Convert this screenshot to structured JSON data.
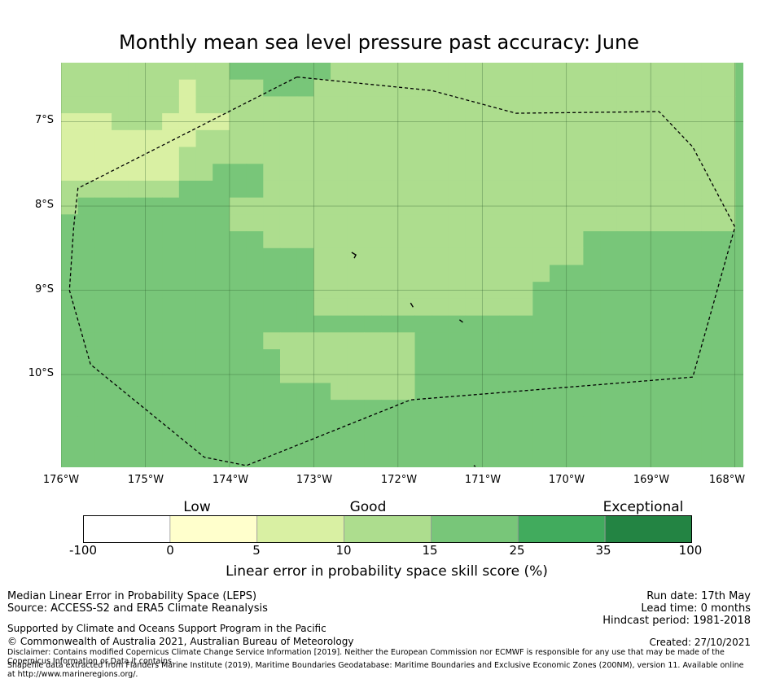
{
  "title": "Monthly mean sea level pressure past accuracy: June",
  "y_axis": {
    "ticks": [
      "7°S",
      "8°S",
      "9°S",
      "10°S"
    ],
    "values": [
      -7,
      -8,
      -9,
      -10
    ]
  },
  "x_axis": {
    "ticks": [
      "176°W",
      "175°W",
      "174°W",
      "173°W",
      "172°W",
      "171°W",
      "170°W",
      "169°W",
      "168°W"
    ],
    "values": [
      -176,
      -175,
      -174,
      -173,
      -172,
      -171,
      -170,
      -169,
      -168
    ]
  },
  "map_extent": {
    "lon": [
      -176,
      -167.9
    ],
    "lat": [
      -6.3,
      -11.1
    ]
  },
  "colors": {
    "low": "#ffffcc",
    "good_low": "#d9f0a3",
    "good": "#addd8e",
    "good_high": "#78c679",
    "exceptional_low": "#41ab5d",
    "exceptional": "#238443",
    "boundary": "#000000",
    "grid": "#2f5f2f"
  },
  "grid_cells": {
    "lon_start": -176,
    "lon_step": 0.2,
    "lat_start": -6.3,
    "lat_step": -0.2,
    "legend": [
      "0 = good (10-15)",
      "1 = good_low (5-10)",
      "2 = good_high (15-25)"
    ],
    "rows": [
      "0000000000222222000000000000000000000000",
      "0000000100002220000000000000000000000000",
      "0000000100000000000000000000000000000000",
      "1110001111000000000000000000000000000000",
      "1111111100000000000000000000000000000000",
      "1111111000000000000000000000000000000000",
      "1111111002220000000000000000000000000000",
      "0000000222220000000000000000000000000000",
      "0222222222000000000000000000000000000000",
      "2222222222000000000000000000000000000000",
      "2222222222220000000000000000000222222222",
      "2222222222222220000000000000000222222222",
      "2222222222222220000000000000022222222222",
      "2222222222222220000000000000222222222222",
      "2222222222222220000000000000222222222222",
      "2222222222222222222222222222222222222222",
      "2222222222220000000002222222222222222222",
      "2222222222222000000002222222222222222222",
      "2222222222222000000002222222222222222222",
      "2222222222222222000002222222222222222222",
      "2222222222222222222222222222222222222222",
      "2222222222222222222222222222222222222222",
      "2222222222222222222222222222222222222222",
      "2222222222222222222222222222222222222222",
      "2222222222222222222222222222222222222222"
    ]
  },
  "eez_boundary_lonlat": [
    [
      -173.2,
      -6.47
    ],
    [
      -171.6,
      -6.63
    ],
    [
      -170.6,
      -6.9
    ],
    [
      -168.9,
      -6.88
    ],
    [
      -168.5,
      -7.3
    ],
    [
      -168.0,
      -8.25
    ],
    [
      -168.5,
      -10.03
    ],
    [
      -171.85,
      -10.3
    ],
    [
      -173.8,
      -11.08
    ],
    [
      -174.3,
      -10.98
    ],
    [
      -175.65,
      -9.88
    ],
    [
      -175.9,
      -9.0
    ],
    [
      -175.85,
      -8.25
    ],
    [
      -175.8,
      -7.79
    ],
    [
      -173.2,
      -6.47
    ]
  ],
  "islands_lonlat": [
    [
      [
        -172.55,
        -8.55
      ],
      [
        -172.5,
        -8.58
      ],
      [
        -172.52,
        -8.62
      ]
    ],
    [
      [
        -171.85,
        -9.15
      ],
      [
        -171.82,
        -9.2
      ]
    ],
    [
      [
        -171.27,
        -9.35
      ],
      [
        -171.23,
        -9.38
      ]
    ],
    [
      [
        -171.1,
        -11.08
      ],
      [
        -171.08,
        -11.09
      ]
    ]
  ],
  "colorbar": {
    "categories": [
      "Low",
      "Good",
      "Exceptional"
    ],
    "ticks": [
      "-100",
      "0",
      "5",
      "10",
      "15",
      "25",
      "35",
      "100"
    ],
    "segment_colors": [
      "#ffffff",
      "#ffffcc",
      "#d9f0a3",
      "#addd8e",
      "#78c679",
      "#41ab5d",
      "#238443"
    ],
    "label": "Linear error in probability space skill score (%)"
  },
  "footer": {
    "metric": "Median Linear Error in Probability Space (LEPS)",
    "source": "Source: ACCESS-S2 and ERA5 Climate Reanalysis",
    "run_date": "Run date: 17th May",
    "lead_time": "Lead time: 0 months",
    "hindcast": "Hindcast period: 1981-2018",
    "supported": "Supported by Climate and Oceans Support Program in the Pacific",
    "copyright": "© Commonwealth of Australia 2021, Australian Bureau of Meteorology",
    "created": "Created: 27/10/2021",
    "disclaimer": "Disclaimer: Contains modified Copernicus Climate Change Service Information [2019]. Neither the European Commission nor ECMWF is responsible for any use that may be made of the Copernicus Information or Data it contains.",
    "shapefile": "Shapefile data extracted from Flanders Marine Institute (2019), Maritime Boundaries Geodatabase: Maritime Boundaries and Exclusive Economic Zones (200NM), version 11. Available online at http://www.marineregions.org/."
  }
}
